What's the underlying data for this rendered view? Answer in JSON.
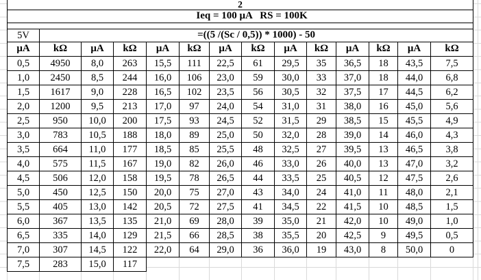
{
  "colors": {
    "border": "#000000",
    "gridline": "#d9d9d9",
    "text": "#000000",
    "background": "#ffffff"
  },
  "header": {
    "page_number": "2",
    "parameters": "Ieq = 100 μA   RS = 100K",
    "voltage": "5V",
    "formula": "=((5 /(Sc / 0,5)) * 1000) - 50"
  },
  "table": {
    "column_headers": [
      "μA",
      "kΩ",
      "μA",
      "kΩ",
      "μA",
      "kΩ",
      "μA",
      "kΩ",
      "μA",
      "kΩ",
      "μA",
      "kΩ",
      "μA",
      "kΩ"
    ],
    "rows": [
      [
        "0,5",
        "4950",
        "8,0",
        "263",
        "15,5",
        "111",
        "22,5",
        "61",
        "29,5",
        "35",
        "36,5",
        "18",
        "43,5",
        "7,5"
      ],
      [
        "1,0",
        "2450",
        "8,5",
        "244",
        "16,0",
        "106",
        "23,0",
        "59",
        "30,0",
        "33",
        "37,0",
        "18",
        "44,0",
        "6,8"
      ],
      [
        "1,5",
        "1617",
        "9,0",
        "228",
        "16,5",
        "102",
        "23,5",
        "56",
        "30,5",
        "32",
        "37,5",
        "17",
        "44,5",
        "6,2"
      ],
      [
        "2,0",
        "1200",
        "9,5",
        "213",
        "17,0",
        "97",
        "24,0",
        "54",
        "31,0",
        "31",
        "38,0",
        "16",
        "45,0",
        "5,6"
      ],
      [
        "2,5",
        "950",
        "10,0",
        "200",
        "17,5",
        "93",
        "24,5",
        "52",
        "31,5",
        "29",
        "38,5",
        "15",
        "45,5",
        "4,9"
      ],
      [
        "3,0",
        "783",
        "10,5",
        "188",
        "18,0",
        "89",
        "25,0",
        "50",
        "32,0",
        "28",
        "39,0",
        "14",
        "46,0",
        "4,3"
      ],
      [
        "3,5",
        "664",
        "11,0",
        "177",
        "18,5",
        "85",
        "25,5",
        "48",
        "32,5",
        "27",
        "39,5",
        "13",
        "46,5",
        "3,8"
      ],
      [
        "4,0",
        "575",
        "11,5",
        "167",
        "19,0",
        "82",
        "26,0",
        "46",
        "33,0",
        "26",
        "40,0",
        "13",
        "47,0",
        "3,2"
      ],
      [
        "4,5",
        "506",
        "12,0",
        "158",
        "19,5",
        "78",
        "26,5",
        "44",
        "33,5",
        "25",
        "40,5",
        "12",
        "47,5",
        "2,6"
      ],
      [
        "5,0",
        "450",
        "12,5",
        "150",
        "20,0",
        "75",
        "27,0",
        "43",
        "34,0",
        "24",
        "41,0",
        "11",
        "48,0",
        "2,1"
      ],
      [
        "5,5",
        "405",
        "13,0",
        "142",
        "20,5",
        "72",
        "27,5",
        "41",
        "34,5",
        "22",
        "41,5",
        "10",
        "48,5",
        "1,5"
      ],
      [
        "6,0",
        "367",
        "13,5",
        "135",
        "21,0",
        "69",
        "28,0",
        "39",
        "35,0",
        "21",
        "42,0",
        "10",
        "49,0",
        "1,0"
      ],
      [
        "6,5",
        "335",
        "14,0",
        "129",
        "21,5",
        "66",
        "28,5",
        "38",
        "35,5",
        "20",
        "42,5",
        "9",
        "49,5",
        "0,5"
      ],
      [
        "7,0",
        "307",
        "14,5",
        "122",
        "22,0",
        "64",
        "29,0",
        "36",
        "36,0",
        "19",
        "43,0",
        "8",
        "50,0",
        "0"
      ],
      [
        "7,5",
        "283",
        "15,0",
        "117"
      ]
    ]
  }
}
